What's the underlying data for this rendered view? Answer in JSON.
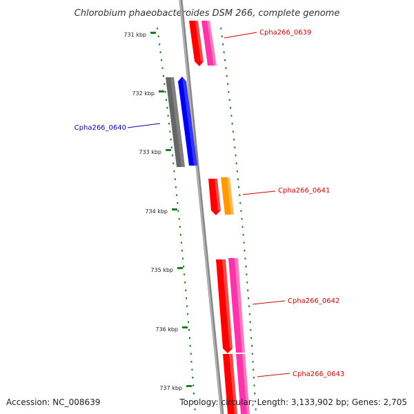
{
  "title": "Chlorobium phaeobacteroides DSM 266, complete genome",
  "footer": {
    "accession": "Accession: NC_008639",
    "summary": "Topology: circular; Length: 3,133,902 bp; Genes: 2,705"
  },
  "ticks": [
    "731 kbp",
    "732 kbp",
    "733 kbp",
    "734 kbp",
    "735 kbp",
    "736 kbp",
    "737 kbp"
  ],
  "gene_labels": [
    {
      "text": "Cpha266_0639",
      "color": "#cc0000"
    },
    {
      "text": "Cpha266_0640",
      "color": "#0000aa"
    },
    {
      "text": "Cpha266_0641",
      "color": "#cc0000"
    },
    {
      "text": "Cpha266_0642",
      "color": "#cc0000"
    },
    {
      "text": "Cpha266_0643",
      "color": "#cc0000"
    }
  ],
  "colors": {
    "backbone": "#8a8a8a",
    "tick": "#1f7a1f",
    "red_gene": "#ff0000",
    "pink_gene": "#ff33aa",
    "blue_gene": "#0000ee",
    "gray_gene": "#666666",
    "orange_gene": "#ff9900"
  }
}
